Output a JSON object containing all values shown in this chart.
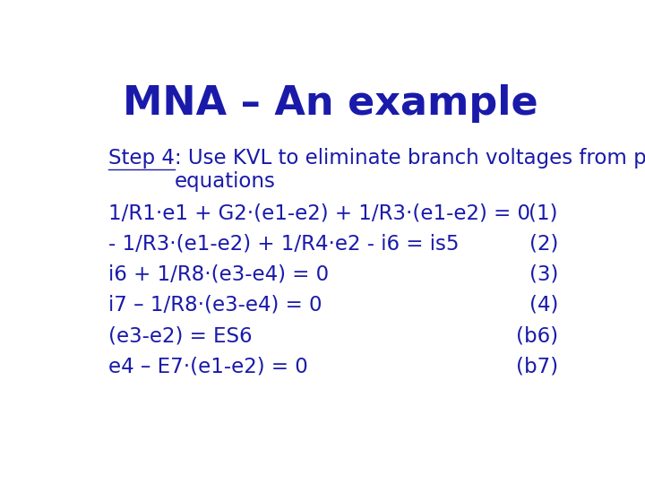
{
  "title": "MNA – An example",
  "title_color": "#1a1aaa",
  "title_fontsize": 32,
  "title_bold": true,
  "bg_color": "#ffffff",
  "text_color": "#1a1aaa",
  "body_fontsize": 16.5,
  "step_label": "Step 4",
  "step_intro": ": Use KVL to eliminate branch voltages from previous\nequations",
  "equations": [
    {
      "left": "1/R1·e1 + G2·(e1-e2) + 1/R3·(e1-e2) = 0",
      "right": "(1)"
    },
    {
      "left": "- 1/R3·(e1-e2) + 1/R4·e2 - i6 = is5",
      "right": "(2)"
    },
    {
      "left": "i6 + 1/R8·(e3-e4) = 0",
      "right": "(3)"
    },
    {
      "left": "i7 – 1/R8·(e3-e4) = 0",
      "right": "(4)"
    },
    {
      "left": "(e3-e2) = ES6",
      "right": "(b6)"
    },
    {
      "left": "e4 – E7·(e1-e2) = 0",
      "right": "(b7)"
    }
  ]
}
